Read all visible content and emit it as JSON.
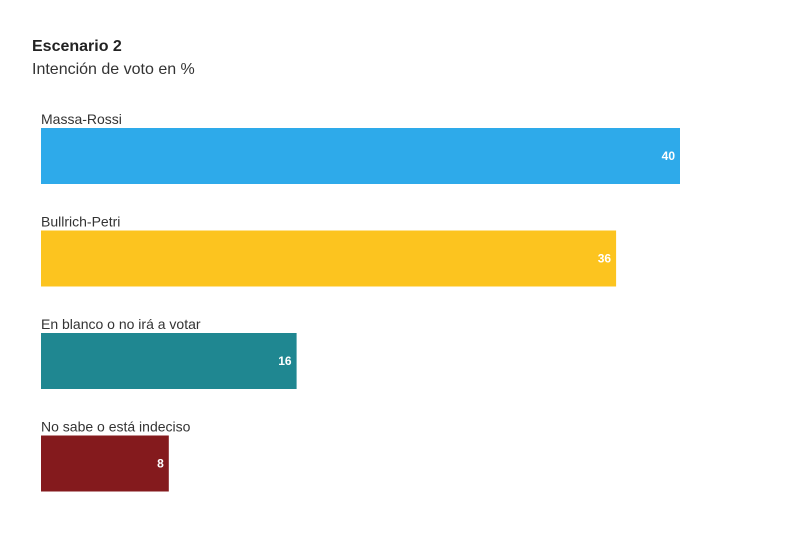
{
  "chart_data": {
    "type": "bar",
    "orientation": "horizontal",
    "title": "Escenario 2",
    "subtitle": "Intención de voto en %",
    "categories": [
      "Massa-Rossi",
      "Bullrich-Petri",
      "En blanco o no irá a votar",
      "No sabe o está indeciso"
    ],
    "values": [
      40,
      36,
      16,
      8
    ],
    "value_labels": [
      "40",
      "36",
      "16",
      "8"
    ],
    "colors": [
      "#2eaaea",
      "#fcc41f",
      "#1f8791",
      "#841a1d"
    ],
    "xlim": [
      0,
      40
    ],
    "grid": false,
    "legend": "none"
  }
}
